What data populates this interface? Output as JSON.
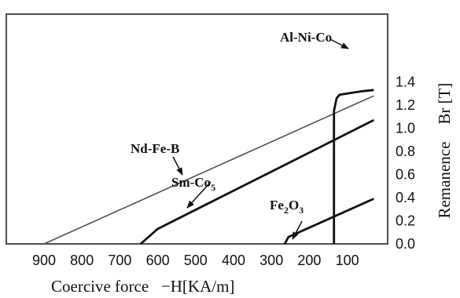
{
  "chart_data": {
    "type": "line",
    "title": "",
    "xlabel": "Coercive force   −H[KA/m]",
    "ylabel": "Remanence   Br [T]",
    "ylabel_parts": {
      "word": "Remanence",
      "unit": "Br [T]"
    },
    "xlim": [
      1000,
      30
    ],
    "ylim": [
      0,
      1.5
    ],
    "x_reversed": true,
    "y_axis_side": "right",
    "grid": false,
    "x_ticks": [
      900,
      800,
      700,
      600,
      500,
      400,
      300,
      200,
      100
    ],
    "x_tick_labels": [
      "900",
      "800",
      "700",
      "600",
      "500",
      "400",
      "300",
      "200",
      "100"
    ],
    "y_ticks": [
      0.0,
      0.2,
      0.4,
      0.6,
      0.8,
      1.0,
      1.2,
      1.4
    ],
    "y_tick_labels": [
      "0.0",
      "0.2",
      "0.4",
      "0.6",
      "0.8",
      "1.0",
      "1.2",
      "1.4"
    ],
    "series": [
      {
        "name": "Nd-Fe-B",
        "label_parts": [
          "Nd-Fe-B"
        ],
        "color": "#4a4f63",
        "points": [
          [
            900,
            0.0
          ],
          [
            30,
            1.28
          ]
        ]
      },
      {
        "name": "Sm-Co5",
        "label_parts": [
          "Sm-Co",
          "5"
        ],
        "color": "#111111",
        "points": [
          [
            645,
            0.0
          ],
          [
            600,
            0.13
          ],
          [
            30,
            1.07
          ]
        ]
      },
      {
        "name": "Al-Ni-Co",
        "label_parts": [
          "Al-Ni-Co"
        ],
        "color": "#111111",
        "points": [
          [
            135,
            0.0
          ],
          [
            135,
            1.15
          ],
          [
            128,
            1.26
          ],
          [
            120,
            1.29
          ],
          [
            60,
            1.32
          ],
          [
            30,
            1.33
          ]
        ]
      },
      {
        "name": "Fe2O3",
        "label_parts": [
          "Fe",
          "2",
          "O",
          "3"
        ],
        "color": "#111111",
        "points": [
          [
            265,
            0.0
          ],
          [
            255,
            0.06
          ],
          [
            30,
            0.39
          ]
        ]
      }
    ]
  }
}
